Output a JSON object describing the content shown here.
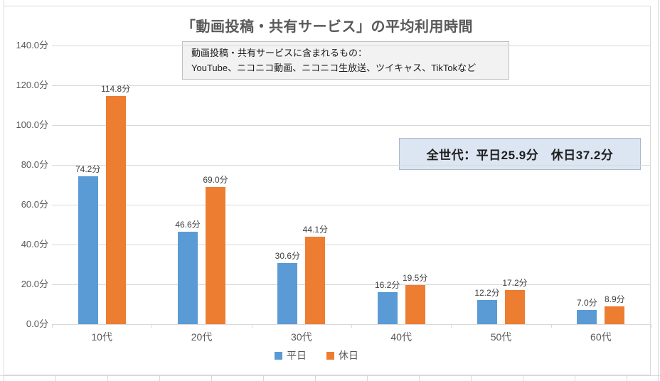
{
  "chart_data": {
    "type": "bar",
    "title": "「動画投稿・共有サービス」の平均利用時間",
    "categories": [
      "10代",
      "20代",
      "30代",
      "40代",
      "50代",
      "60代"
    ],
    "series": [
      {
        "name": "平日",
        "key": "weekday",
        "color": "#5B9BD5",
        "values": [
          74.2,
          46.6,
          30.6,
          16.2,
          12.2,
          7.0
        ]
      },
      {
        "name": "休日",
        "key": "holiday",
        "color": "#ED7D31",
        "values": [
          114.8,
          69.0,
          44.1,
          19.5,
          17.2,
          8.9
        ]
      }
    ],
    "ylim": [
      0,
      140
    ],
    "ytick_step": 20,
    "unit_suffix": "分",
    "grid": true,
    "legend_position": "bottom",
    "data_labels": true
  },
  "notes": {
    "definition": {
      "line1": "動画投稿・共有サービスに含まれるもの：",
      "line2": "YouTube、ニコニコ動画、ニコニコ生放送、ツイキャス、TikTokなど"
    },
    "overall": "全世代：平日25.9分　休日37.2分"
  },
  "colors": {
    "weekday": "#5B9BD5",
    "holiday": "#ED7D31",
    "gridline": "#D9D9D9",
    "axis_text": "#595959",
    "data_label_text": "#404040",
    "title_text": "#595959",
    "note_bg": "#F2F2F2",
    "note_border": "#BFBFBF",
    "overall_bg": "#DCE6F2",
    "overall_border": "#A6B9CF"
  }
}
